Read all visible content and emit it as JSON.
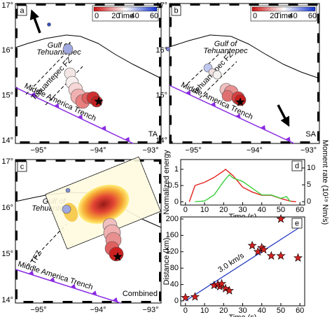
{
  "maps": {
    "panels": [
      {
        "label": "a",
        "corner_text": "TA"
      },
      {
        "label": "b",
        "corner_text": "SA"
      },
      {
        "label": "c",
        "corner_text": "Combined"
      }
    ],
    "lat_ticks": [
      "17°",
      "16°",
      "15°",
      "14°"
    ],
    "lon_ticks": [
      "−95°",
      "−94°",
      "−93°"
    ],
    "gulf_label": [
      "Gulf of",
      "Tehuantepec"
    ],
    "fz_label": "Tehuantepec FZ",
    "fz_short": "TFZ",
    "trench_label": "Middle America Trench",
    "colorbar": {
      "title": "Time",
      "lim": [
        0,
        60
      ],
      "ticks": [
        0,
        20,
        40,
        60
      ]
    }
  },
  "chart_data": [
    {
      "type": "line",
      "panel_label": "d",
      "xlabel": "Time (s)",
      "ylabel": "Normalized energy",
      "y2label": "Moment rate (10¹⁹ Nm/s)",
      "xlim": [
        -2.5,
        62.5
      ],
      "xticks": [
        0,
        10,
        20,
        30,
        40,
        50,
        60
      ],
      "ylim": [
        -0.1,
        1.3
      ],
      "yticks": [
        0,
        0.5,
        1
      ],
      "y2lim": [
        -1,
        12.5
      ],
      "y2ticks": [
        0,
        5,
        10
      ],
      "series": [
        {
          "color": "#e0201c",
          "x": [
            2,
            5,
            10,
            15,
            20,
            21,
            25,
            30,
            35,
            40,
            45,
            50,
            55,
            58
          ],
          "values": [
            0,
            0.5,
            0.6,
            0.75,
            0.95,
            1.0,
            0.8,
            0.45,
            0.3,
            0.2,
            0.2,
            0.1,
            0.02,
            0
          ]
        },
        {
          "color": "#3cd03c",
          "axis": "y2",
          "x": [
            5,
            10,
            15,
            20,
            23,
            25,
            30,
            35,
            40,
            45,
            50,
            53,
            55
          ],
          "values": [
            0,
            0.2,
            2,
            6,
            8,
            7,
            6,
            4,
            2,
            2,
            1,
            1.5,
            0
          ]
        }
      ]
    },
    {
      "type": "scatter",
      "panel_label": "e",
      "xlabel": "Time (s)",
      "ylabel": "Distance (km)",
      "annotation": "3.0 km/s",
      "xlim": [
        -2.5,
        62.5
      ],
      "xticks": [
        0,
        10,
        20,
        30,
        40,
        50,
        60
      ],
      "ylim": [
        -12,
        205
      ],
      "yticks": [
        0,
        40,
        80,
        120,
        160,
        200
      ],
      "color": "#d42020",
      "line_color": "#2b3fc4",
      "fit_line": {
        "x": [
          0,
          60
        ],
        "y": [
          0,
          180
        ]
      },
      "x": [
        0,
        5,
        15,
        17,
        18,
        19,
        21,
        23,
        35,
        38,
        40,
        41,
        45,
        50,
        50,
        59
      ],
      "values": [
        8,
        10,
        38,
        40,
        35,
        42,
        30,
        25,
        135,
        120,
        130,
        125,
        110,
        200,
        110,
        105
      ]
    }
  ]
}
